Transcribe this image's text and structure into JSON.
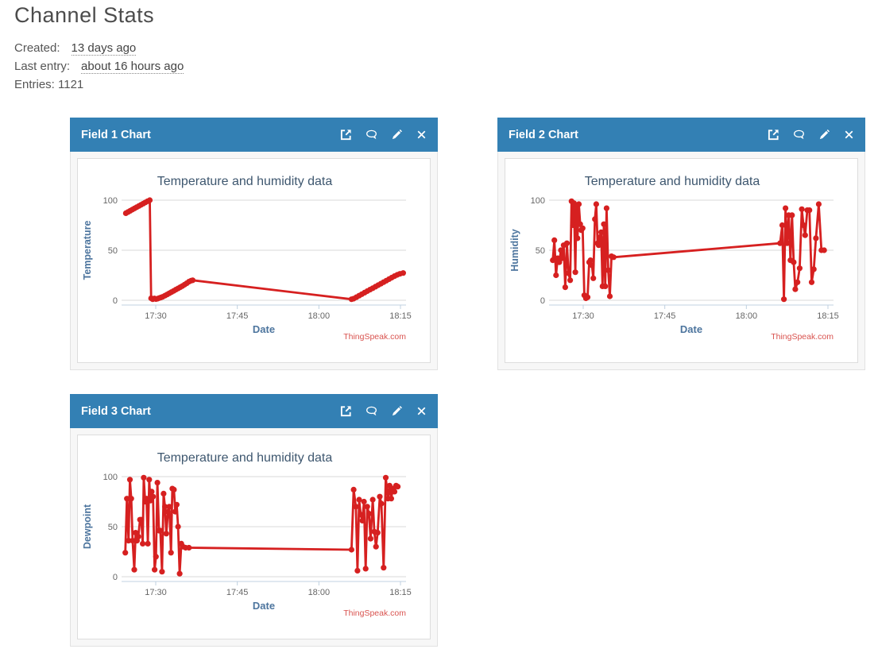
{
  "page": {
    "title": "Channel Stats",
    "created_label": "Created:",
    "created_value": "13 days ago",
    "last_entry_label": "Last entry:",
    "last_entry_value": "about 16 hours ago",
    "entries_text": "Entries: 1121"
  },
  "colors": {
    "header_bg": "#3380b4",
    "header_text": "#ffffff",
    "series_red": "#d62020",
    "chart_title": "#3e576f",
    "axis_title": "#4d759e",
    "tick_label": "#666666",
    "gridline": "#d8d8d8",
    "axis_line": "#c0d0e0",
    "credits": "#d9534f"
  },
  "widgets": [
    {
      "title": "Field 1 Chart",
      "icons": [
        "open-in-new",
        "comment",
        "edit",
        "close"
      ]
    },
    {
      "title": "Field 2 Chart",
      "icons": [
        "open-in-new",
        "comment",
        "edit",
        "close"
      ]
    },
    {
      "title": "Field 3 Chart",
      "icons": [
        "open-in-new",
        "comment",
        "edit",
        "close"
      ]
    }
  ],
  "chart_data": [
    {
      "type": "line",
      "title": "Temperature and humidity data",
      "xlabel": "Date",
      "ylabel": "Temperature",
      "credits": "ThingSpeak.com",
      "ylim": [
        0,
        100
      ],
      "y_ticks": [
        0,
        50,
        100
      ],
      "x_ticks": [
        {
          "t": 30,
          "label": "17:30"
        },
        {
          "t": 45,
          "label": "17:45"
        },
        {
          "t": 60,
          "label": "18:00"
        },
        {
          "t": 75,
          "label": "18:15"
        }
      ],
      "x_unit": "minutes after 17:00",
      "x_range": [
        24,
        76
      ],
      "grid": true,
      "legend": false,
      "series": [
        {
          "name": "Temperature",
          "points": [
            [
              24.5,
              87
            ],
            [
              24.9,
              88.2
            ],
            [
              25.3,
              89.4
            ],
            [
              25.7,
              90.6
            ],
            [
              26.1,
              91.8
            ],
            [
              26.5,
              93
            ],
            [
              26.9,
              94.2
            ],
            [
              27.3,
              95.4
            ],
            [
              27.7,
              96.6
            ],
            [
              28.1,
              97.8
            ],
            [
              28.5,
              99
            ],
            [
              28.9,
              100
            ],
            [
              29.15,
              2
            ],
            [
              29.45,
              1
            ],
            [
              29.75,
              1.8
            ],
            [
              30.05,
              1.2
            ],
            [
              30.35,
              1.6
            ],
            [
              30.65,
              2.2
            ],
            [
              30.95,
              2.8
            ],
            [
              31.25,
              3.4
            ],
            [
              31.7,
              4.6
            ],
            [
              32.1,
              5.8
            ],
            [
              32.5,
              7
            ],
            [
              32.9,
              8.2
            ],
            [
              33.3,
              9.4
            ],
            [
              33.7,
              10.6
            ],
            [
              34.1,
              11.8
            ],
            [
              34.5,
              13
            ],
            [
              34.9,
              14.2
            ],
            [
              35.3,
              15.6
            ],
            [
              35.7,
              17
            ],
            [
              36.1,
              18.6
            ],
            [
              36.5,
              19.6
            ],
            [
              36.8,
              20
            ],
            [
              66,
              1
            ],
            [
              66.4,
              1.6
            ],
            [
              66.9,
              3.1
            ],
            [
              67.4,
              4.6
            ],
            [
              67.9,
              6.1
            ],
            [
              68.4,
              7.6
            ],
            [
              68.9,
              9.1
            ],
            [
              69.4,
              10.6
            ],
            [
              69.9,
              12.1
            ],
            [
              70.4,
              13.6
            ],
            [
              70.9,
              15.1
            ],
            [
              71.4,
              16.6
            ],
            [
              71.9,
              18.1
            ],
            [
              72.4,
              19.6
            ],
            [
              72.9,
              21.1
            ],
            [
              73.4,
              22.6
            ],
            [
              73.9,
              24.1
            ],
            [
              74.4,
              25.4
            ],
            [
              74.9,
              26.4
            ],
            [
              75.5,
              27.2
            ]
          ]
        }
      ]
    },
    {
      "type": "line",
      "title": "Temperature and humidity data",
      "xlabel": "Date",
      "ylabel": "Humidity",
      "credits": "ThingSpeak.com",
      "ylim": [
        0,
        100
      ],
      "y_ticks": [
        0,
        50,
        100
      ],
      "x_ticks": [
        {
          "t": 30,
          "label": "17:30"
        },
        {
          "t": 45,
          "label": "17:45"
        },
        {
          "t": 60,
          "label": "18:00"
        },
        {
          "t": 75,
          "label": "18:15"
        }
      ],
      "x_unit": "minutes after 17:00",
      "x_range": [
        24,
        76
      ],
      "grid": true,
      "legend": false,
      "series": [
        {
          "name": "Humidity",
          "points": [
            [
              24.4,
              40
            ],
            [
              24.7,
              60
            ],
            [
              25,
              25
            ],
            [
              25.3,
              42
            ],
            [
              25.6,
              38
            ],
            [
              25.9,
              50
            ],
            [
              26.1,
              42
            ],
            [
              26.4,
              55
            ],
            [
              26.7,
              13
            ],
            [
              27,
              57
            ],
            [
              27.3,
              27
            ],
            [
              27.6,
              20
            ],
            [
              27.85,
              99
            ],
            [
              28.1,
              75
            ],
            [
              28.3,
              97
            ],
            [
              28.55,
              28
            ],
            [
              28.75,
              95
            ],
            [
              28.95,
              62
            ],
            [
              29.2,
              96
            ],
            [
              29.45,
              76
            ],
            [
              29.65,
              70
            ],
            [
              29.9,
              72
            ],
            [
              30.2,
              5
            ],
            [
              30.5,
              2
            ],
            [
              30.8,
              3
            ],
            [
              31.1,
              38
            ],
            [
              31.35,
              40
            ],
            [
              31.6,
              35
            ],
            [
              31.85,
              22
            ],
            [
              32.15,
              81
            ],
            [
              32.4,
              96
            ],
            [
              32.65,
              57
            ],
            [
              32.85,
              55
            ],
            [
              33.05,
              63
            ],
            [
              33.3,
              68
            ],
            [
              33.55,
              14
            ],
            [
              33.8,
              76
            ],
            [
              34.05,
              14
            ],
            [
              34.3,
              92
            ],
            [
              34.6,
              30
            ],
            [
              34.9,
              4
            ],
            [
              35.2,
              44
            ],
            [
              35.6,
              43
            ],
            [
              66.2,
              57
            ],
            [
              66.6,
              75
            ],
            [
              66.9,
              1
            ],
            [
              67.2,
              92
            ],
            [
              67.5,
              57
            ],
            [
              67.8,
              85
            ],
            [
              68.1,
              40
            ],
            [
              68.4,
              85
            ],
            [
              68.7,
              38
            ],
            [
              69,
              11
            ],
            [
              69.4,
              18
            ],
            [
              69.8,
              32
            ],
            [
              70.2,
              91
            ],
            [
              70.5,
              75
            ],
            [
              70.8,
              65
            ],
            [
              71.2,
              90
            ],
            [
              71.6,
              90
            ],
            [
              72,
              18
            ],
            [
              72.4,
              31
            ],
            [
              72.8,
              62
            ],
            [
              73.3,
              96
            ],
            [
              73.8,
              50
            ],
            [
              74.3,
              50
            ]
          ]
        }
      ]
    },
    {
      "type": "line",
      "title": "Temperature and humidity data",
      "xlabel": "Date",
      "ylabel": "Dewpoint",
      "credits": "ThingSpeak.com",
      "ylim": [
        0,
        100
      ],
      "y_ticks": [
        0,
        50,
        100
      ],
      "x_ticks": [
        {
          "t": 30,
          "label": "17:30"
        },
        {
          "t": 45,
          "label": "17:45"
        },
        {
          "t": 60,
          "label": "18:00"
        },
        {
          "t": 75,
          "label": "18:15"
        }
      ],
      "x_unit": "minutes after 17:00",
      "x_range": [
        24,
        76
      ],
      "grid": true,
      "legend": false,
      "series": [
        {
          "name": "Dewpoint",
          "points": [
            [
              24.4,
              24
            ],
            [
              24.7,
              78
            ],
            [
              25,
              36
            ],
            [
              25.25,
              97
            ],
            [
              25.5,
              78
            ],
            [
              25.75,
              36
            ],
            [
              26.05,
              7
            ],
            [
              26.3,
              44
            ],
            [
              26.55,
              36
            ],
            [
              26.8,
              40
            ],
            [
              27.1,
              57
            ],
            [
              27.35,
              57
            ],
            [
              27.6,
              33
            ],
            [
              27.8,
              99
            ],
            [
              28.05,
              75
            ],
            [
              28.3,
              78
            ],
            [
              28.55,
              33
            ],
            [
              28.8,
              97
            ],
            [
              29,
              76
            ],
            [
              29.25,
              85
            ],
            [
              29.5,
              80
            ],
            [
              29.8,
              7
            ],
            [
              30.05,
              20
            ],
            [
              30.3,
              94
            ],
            [
              30.6,
              46
            ],
            [
              30.85,
              46
            ],
            [
              31.15,
              5
            ],
            [
              31.45,
              83
            ],
            [
              31.7,
              70
            ],
            [
              31.95,
              43
            ],
            [
              32.25,
              65
            ],
            [
              32.5,
              70
            ],
            [
              32.8,
              24
            ],
            [
              33.05,
              88
            ],
            [
              33.35,
              87
            ],
            [
              33.6,
              65
            ],
            [
              33.85,
              72
            ],
            [
              34.1,
              50
            ],
            [
              34.4,
              3
            ],
            [
              34.7,
              33
            ],
            [
              35,
              30
            ],
            [
              35.5,
              29
            ],
            [
              36.1,
              29
            ],
            [
              66,
              27
            ],
            [
              66.4,
              87
            ],
            [
              66.8,
              70
            ],
            [
              67.1,
              6
            ],
            [
              67.4,
              77
            ],
            [
              67.7,
              62
            ],
            [
              68,
              56
            ],
            [
              68.3,
              75
            ],
            [
              68.6,
              8
            ],
            [
              68.9,
              70
            ],
            [
              69.2,
              63
            ],
            [
              69.5,
              38
            ],
            [
              69.9,
              77
            ],
            [
              70.2,
              45
            ],
            [
              70.5,
              30
            ],
            [
              70.8,
              44
            ],
            [
              71.2,
              80
            ],
            [
              71.5,
              73
            ],
            [
              71.9,
              9
            ],
            [
              72.3,
              99
            ],
            [
              72.7,
              78
            ],
            [
              73,
              91
            ],
            [
              73.3,
              78
            ],
            [
              73.6,
              88
            ],
            [
              73.9,
              85
            ],
            [
              74.2,
              91
            ],
            [
              74.5,
              90
            ]
          ]
        }
      ]
    }
  ]
}
